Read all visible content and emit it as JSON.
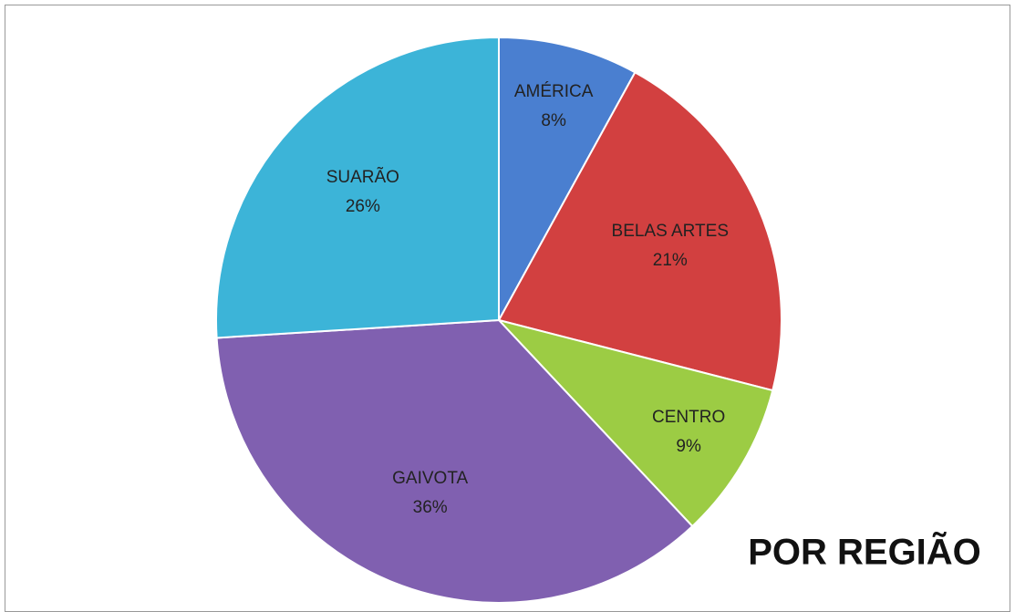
{
  "chart_data": {
    "type": "pie",
    "title": "POR REGIÃO",
    "categories": [
      "AMÉRICA",
      "BELAS ARTES",
      "CENTRO",
      "GAIVOTA",
      "SUARÃO"
    ],
    "values": [
      8,
      21,
      9,
      36,
      26
    ],
    "value_labels": [
      "8%",
      "21%",
      "9%",
      "36%",
      "26%"
    ],
    "colors": [
      "#4a7fd0",
      "#d24040",
      "#9ccc44",
      "#8060b0",
      "#3cb4d8"
    ]
  }
}
